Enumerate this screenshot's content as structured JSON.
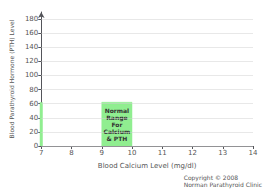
{
  "chart_data": {
    "type": "region",
    "xlabel": "Blood Calcium Level (mg/dl)",
    "ylabel": "Blood Parathyroid Hormone (PTH) Level",
    "xlim": [
      7,
      14
    ],
    "ylim": [
      0,
      190
    ],
    "xticks": [
      7,
      8,
      9,
      10,
      11,
      12,
      13,
      14
    ],
    "yticks": [
      0,
      20,
      40,
      60,
      80,
      100,
      120,
      140,
      160,
      180
    ],
    "grid": true,
    "series": [
      {
        "type": "region",
        "color": "#90EE90",
        "x": [
          9,
          10
        ],
        "y": [
          0,
          62
        ],
        "label": "Normal\nRange\nFor\nCalcium\n& PTH"
      },
      {
        "type": "line",
        "color": "#90EE90",
        "x": [
          7,
          7
        ],
        "y": [
          0,
          62
        ]
      }
    ],
    "annotations": [
      {
        "text": "Copyright © 2008\nNorman Parathyroid Clinic"
      }
    ]
  }
}
